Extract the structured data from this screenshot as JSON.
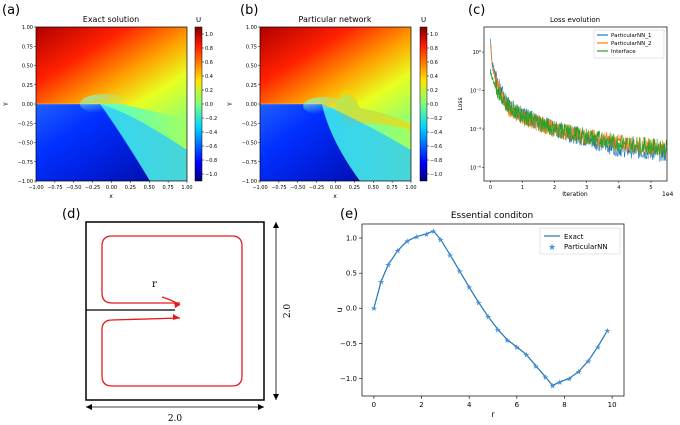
{
  "colors": {
    "exact_line": "#1f77b4",
    "particular_nn_1": "#1f77b4",
    "particular_nn_2": "#ff7f0e",
    "interface": "#2ca02c",
    "stars": "#4a90d9",
    "domain_path": "#e31a1c"
  },
  "panel_a": {
    "letter": "(a)",
    "title": "Exact solution",
    "xlabel": "x",
    "ylabel": "Y",
    "colorbar_label": "U",
    "xticks": [
      "−1.00",
      "−0.75",
      "−0.50",
      "−0.25",
      "0.00",
      "0.25",
      "0.50",
      "0.75",
      "1.00"
    ],
    "yticks": [
      "1.00",
      "0.75",
      "0.50",
      "0.25",
      "0.00",
      "−0.25",
      "−0.50",
      "−0.75",
      "−1.00"
    ],
    "colorbar_ticks": [
      "1.0",
      "0.8",
      "0.6",
      "0.4",
      "0.2",
      "0.0",
      "−0.2",
      "−0.4",
      "−0.6",
      "−0.8",
      "−1.0"
    ]
  },
  "panel_b": {
    "letter": "(b)",
    "title": "Particular network",
    "xlabel": "x",
    "ylabel": "Y",
    "colorbar_label": "U",
    "xticks": [
      "−1.00",
      "−0.75",
      "−0.50",
      "−0.25",
      "0.00",
      "0.25",
      "0.50",
      "0.75",
      "1.00"
    ],
    "yticks": [
      "1.00",
      "0.75",
      "0.50",
      "0.25",
      "0.00",
      "−0.25",
      "−0.50",
      "−0.75",
      "−1.00"
    ],
    "colorbar_ticks": [
      "1.0",
      "0.8",
      "0.6",
      "0.4",
      "0.2",
      "0.0",
      "−0.2",
      "−0.4",
      "−0.6",
      "−0.8",
      "−1.0"
    ]
  },
  "panel_c": {
    "letter": "(c)",
    "title": "Loss evolution",
    "xlabel": "Iteration",
    "ylabel": "Loss",
    "x_multiplier": "1e4",
    "xticks": [
      "0",
      "1",
      "2",
      "3",
      "4",
      "5"
    ],
    "yticks": [
      "10⁰",
      "10⁻²",
      "10⁻⁴",
      "10⁻⁶"
    ],
    "legend": [
      "ParticularNN_1",
      "ParticularNN_2",
      "Interface"
    ]
  },
  "panel_d": {
    "letter": "(d)",
    "r_label": "r",
    "width_label": "2.0",
    "height_label": "2.0"
  },
  "chart_data": [
    {
      "type": "heatmap",
      "panel": "a",
      "title": "Exact solution",
      "xlabel": "x",
      "ylabel": "Y",
      "xlim": [
        -1.0,
        1.0
      ],
      "ylim": [
        -1.0,
        1.0
      ],
      "zlim": [
        -1.1,
        1.1
      ],
      "colormap": "jet",
      "colorbar_label": "U"
    },
    {
      "type": "heatmap",
      "panel": "b",
      "title": "Particular network",
      "xlabel": "x",
      "ylabel": "Y",
      "xlim": [
        -1.0,
        1.0
      ],
      "ylim": [
        -1.0,
        1.0
      ],
      "zlim": [
        -1.1,
        1.1
      ],
      "colormap": "jet",
      "colorbar_label": "U"
    },
    {
      "type": "line",
      "panel": "c",
      "title": "Loss evolution",
      "xlabel": "Iteration",
      "ylabel": "Loss",
      "yscale": "log",
      "xlim": [
        -0.2,
        5.5
      ],
      "ylim": [
        2e-07,
        20
      ],
      "series": [
        {
          "name": "ParticularNN_1",
          "x": [
            0,
            0.05,
            0.2,
            0.5,
            1.0,
            2.0,
            3.0,
            4.0,
            5.5
          ],
          "values": [
            5,
            0.3,
            0.03,
            0.002,
            0.0005,
            0.0001,
            3e-05,
            1e-05,
            5e-06
          ]
        },
        {
          "name": "ParticularNN_2",
          "x": [
            0,
            0.05,
            0.2,
            0.5,
            1.0,
            2.0,
            3.0,
            4.0,
            5.5
          ],
          "values": [
            3,
            0.2,
            0.02,
            0.0015,
            0.0004,
            0.0001,
            4e-05,
            2e-05,
            1e-05
          ]
        },
        {
          "name": "Interface",
          "x": [
            0,
            0.05,
            0.2,
            0.5,
            1.0,
            2.0,
            3.0,
            4.0,
            5.5
          ],
          "values": [
            0.1,
            0.05,
            0.01,
            0.002,
            0.0005,
            0.0001,
            4e-05,
            2e-05,
            1e-05
          ]
        }
      ]
    },
    {
      "type": "line",
      "panel": "e",
      "title": "Essential conditon",
      "xlabel": "r",
      "ylabel": "u",
      "xlim": [
        -0.5,
        10.5
      ],
      "ylim": [
        -1.25,
        1.2
      ],
      "xticks": [
        0,
        2,
        4,
        6,
        8,
        10
      ],
      "yticks": [
        1.0,
        0.5,
        0.0,
        -0.5,
        -1.0
      ],
      "legend_position": "top-right",
      "series": [
        {
          "name": "Exact",
          "style": "line",
          "x": [
            0.0,
            0.3,
            0.6,
            1.0,
            1.4,
            1.8,
            2.2,
            2.5,
            2.8,
            3.2,
            3.6,
            4.0,
            4.4,
            4.8,
            5.2,
            5.6,
            6.0,
            6.4,
            6.8,
            7.2,
            7.5,
            7.8,
            8.2,
            8.6,
            9.0,
            9.4,
            9.8
          ],
          "values": [
            0.0,
            0.38,
            0.62,
            0.82,
            0.96,
            1.02,
            1.06,
            1.1,
            0.98,
            0.76,
            0.53,
            0.3,
            0.08,
            -0.12,
            -0.3,
            -0.45,
            -0.55,
            -0.66,
            -0.82,
            -0.98,
            -1.1,
            -1.05,
            -1.0,
            -0.9,
            -0.75,
            -0.55,
            -0.32
          ]
        },
        {
          "name": "ParticularNN",
          "style": "markers",
          "x": [
            0.0,
            0.3,
            0.6,
            1.0,
            1.4,
            1.8,
            2.2,
            2.5,
            2.8,
            3.2,
            3.6,
            4.0,
            4.4,
            4.8,
            5.2,
            5.6,
            6.0,
            6.4,
            6.8,
            7.2,
            7.5,
            7.8,
            8.2,
            8.6,
            9.0,
            9.4,
            9.8
          ],
          "values": [
            0.0,
            0.38,
            0.62,
            0.82,
            0.96,
            1.02,
            1.06,
            1.1,
            0.98,
            0.76,
            0.53,
            0.3,
            0.08,
            -0.12,
            -0.3,
            -0.45,
            -0.55,
            -0.66,
            -0.82,
            -0.98,
            -1.1,
            -1.05,
            -1.0,
            -0.9,
            -0.75,
            -0.55,
            -0.32
          ]
        }
      ]
    }
  ],
  "panel_e": {
    "letter": "(e)",
    "title": "Essential conditon",
    "xlabel": "r",
    "ylabel": "u",
    "xticks": [
      "0",
      "2",
      "4",
      "6",
      "8",
      "10"
    ],
    "yticks": [
      "1.0",
      "0.5",
      "0.0",
      "−0.5",
      "−1.0"
    ],
    "legend": [
      "Exact",
      "ParticularNN"
    ]
  }
}
